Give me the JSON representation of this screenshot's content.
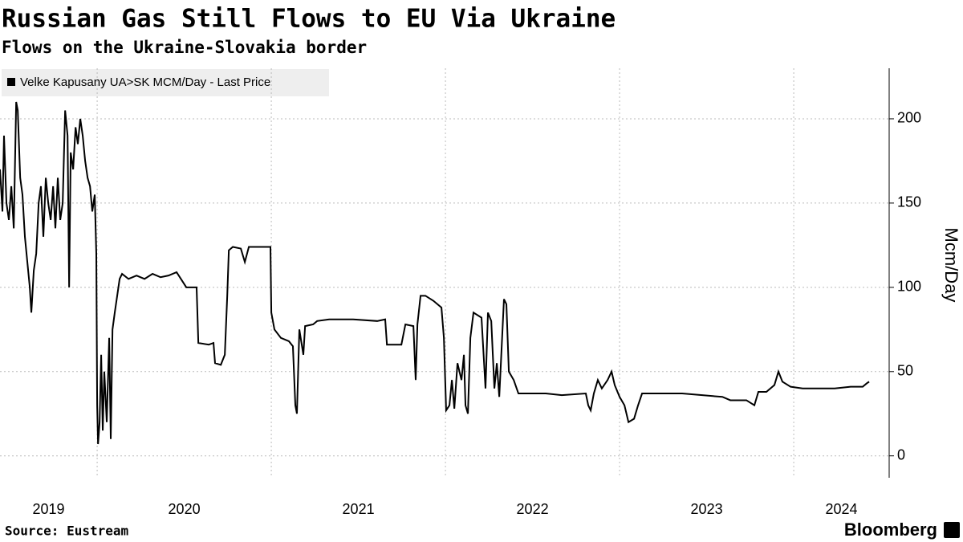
{
  "chart_data": {
    "type": "line",
    "title": "Russian Gas Still Flows to EU Via Ukraine",
    "subtitle": "Flows on the Ukraine-Slovakia border",
    "y_label": "Mcm/Day",
    "source": "Source: Eustream",
    "brand": "Bloomberg",
    "xlim": [
      2019.442,
      2024.548
    ],
    "xticks": [
      {
        "value": 2019,
        "label": "2019"
      },
      {
        "value": 2020,
        "label": "2020"
      },
      {
        "value": 2021,
        "label": "2021"
      },
      {
        "value": 2022,
        "label": "2022"
      },
      {
        "value": 2023,
        "label": "2023"
      },
      {
        "value": 2024,
        "label": "2024"
      }
    ],
    "ylim": [
      -13,
      230
    ],
    "yticks": [
      0,
      50,
      100,
      150,
      200
    ],
    "grid": true,
    "series": [
      {
        "name": "Velke Kapusany UA>SK MCM/Day - Last Price",
        "color": "#000000",
        "x": [
          2019.442,
          2019.456,
          2019.465,
          2019.479,
          2019.493,
          2019.507,
          2019.521,
          2019.535,
          2019.544,
          2019.558,
          2019.571,
          2019.585,
          2019.599,
          2019.613,
          2019.622,
          2019.636,
          2019.65,
          2019.664,
          2019.677,
          2019.691,
          2019.705,
          2019.719,
          2019.733,
          2019.747,
          2019.76,
          2019.774,
          2019.788,
          2019.802,
          2019.816,
          2019.83,
          2019.839,
          2019.848,
          2019.862,
          2019.876,
          2019.889,
          2019.903,
          2019.917,
          2019.931,
          2019.945,
          2019.959,
          2019.972,
          2019.986,
          2019.995,
          2020.0,
          2020.005,
          2020.014,
          2020.023,
          2020.032,
          2020.041,
          2020.055,
          2020.069,
          2020.078,
          2020.088,
          2020.101,
          2020.115,
          2020.129,
          2020.143,
          2020.18,
          2020.226,
          2020.272,
          2020.318,
          2020.364,
          2020.41,
          2020.456,
          2020.512,
          2020.548,
          2020.571,
          2020.581,
          2020.641,
          2020.668,
          2020.677,
          2020.71,
          2020.733,
          2020.747,
          2020.756,
          2020.779,
          2020.825,
          2020.848,
          2020.871,
          2020.917,
          2020.963,
          2020.995,
          2021.0,
          2021.018,
          2021.055,
          2021.101,
          2021.124,
          2021.138,
          2021.147,
          2021.161,
          2021.184,
          2021.194,
          2021.24,
          2021.263,
          2021.332,
          2021.47,
          2021.608,
          2021.654,
          2021.664,
          2021.747,
          2021.77,
          2021.816,
          2021.829,
          2021.839,
          2021.857,
          2021.885,
          2021.931,
          2021.977,
          2021.991,
          2022.004,
          2022.023,
          2022.037,
          2022.051,
          2022.069,
          2022.092,
          2022.106,
          2022.115,
          2022.129,
          2022.143,
          2022.161,
          2022.207,
          2022.23,
          2022.244,
          2022.263,
          2022.272,
          2022.281,
          2022.295,
          2022.309,
          2022.323,
          2022.336,
          2022.35,
          2022.364,
          2022.392,
          2022.419,
          2022.576,
          2022.668,
          2022.806,
          2022.82,
          2022.834,
          2022.852,
          2022.875,
          2022.898,
          2022.931,
          2022.954,
          2022.972,
          2023.0,
          2023.028,
          2023.051,
          2023.083,
          2023.106,
          2023.129,
          2023.359,
          2023.59,
          2023.636,
          2023.728,
          2023.774,
          2023.797,
          2023.843,
          2023.889,
          2023.912,
          2023.935,
          2023.982,
          2024.051,
          2024.235,
          2024.327,
          2024.396,
          2024.419,
          2024.433
        ],
        "values": [
          170,
          145,
          190,
          150,
          140,
          160,
          135,
          210,
          205,
          165,
          155,
          130,
          115,
          100,
          85,
          110,
          120,
          150,
          160,
          130,
          165,
          150,
          140,
          160,
          135,
          165,
          140,
          150,
          205,
          190,
          100,
          180,
          170,
          195,
          185,
          200,
          190,
          175,
          165,
          160,
          145,
          155,
          120,
          30,
          7,
          20,
          60,
          15,
          50,
          20,
          70,
          10,
          75,
          85,
          95,
          105,
          108,
          105,
          107,
          105,
          108,
          106,
          107,
          109,
          100,
          100,
          100,
          67,
          66,
          67,
          55,
          54,
          60,
          95,
          122,
          124,
          123,
          115,
          124,
          124,
          124,
          124,
          85,
          75,
          70,
          68,
          65,
          30,
          25,
          75,
          60,
          77,
          78,
          80,
          81,
          81,
          80,
          81,
          66,
          66,
          78,
          77,
          45,
          78,
          95,
          95,
          92,
          88,
          70,
          27,
          30,
          45,
          28,
          55,
          45,
          60,
          30,
          25,
          70,
          85,
          82,
          40,
          85,
          80,
          60,
          40,
          55,
          35,
          65,
          93,
          90,
          50,
          45,
          37,
          37,
          36,
          37,
          30,
          27,
          37,
          45,
          40,
          45,
          50,
          42,
          35,
          30,
          20,
          22,
          30,
          37,
          37,
          35,
          33,
          33,
          30,
          38,
          38,
          42,
          50,
          44,
          41,
          40,
          40,
          41,
          41,
          43,
          44
        ]
      }
    ]
  }
}
